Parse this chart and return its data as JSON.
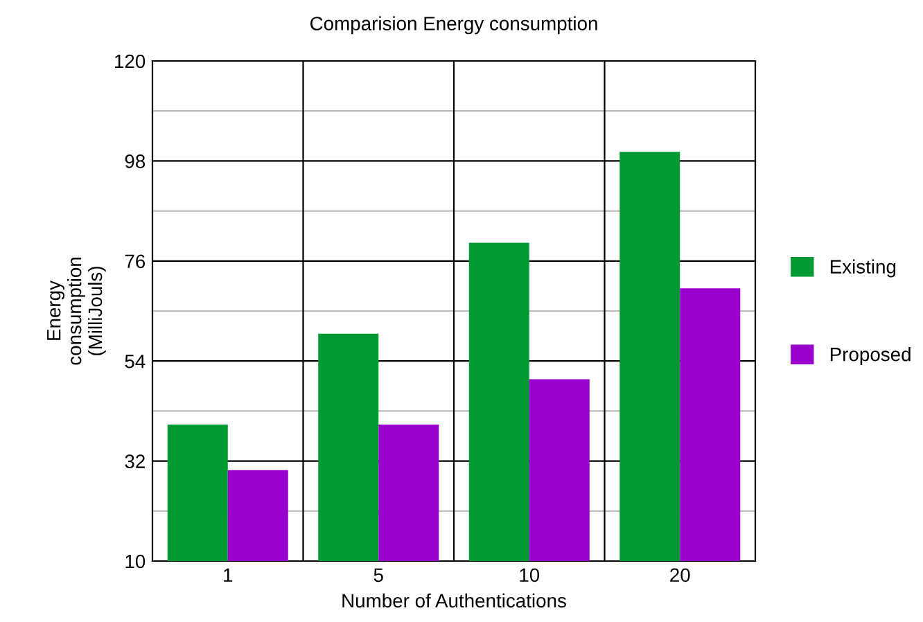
{
  "chart_data": {
    "type": "bar",
    "title": "Comparision Energy consumption",
    "xlabel": "Number of Authentications",
    "ylabel": "Energy\nconsumption\n(MilliJouls)",
    "categories": [
      "1",
      "5",
      "10",
      "20"
    ],
    "series": [
      {
        "name": "Existing",
        "color": "#009933",
        "values": [
          40,
          60,
          80,
          100
        ]
      },
      {
        "name": "Proposed",
        "color": "#9900cc",
        "values": [
          30,
          40,
          50,
          70
        ]
      }
    ],
    "ylim": [
      10,
      120
    ],
    "yticks": [
      10,
      {
        "value": 21,
        "label": null
      },
      32,
      {
        "value": 43,
        "label": null
      },
      54,
      {
        "value": 65,
        "label": null
      },
      76,
      {
        "value": 87,
        "label": null
      },
      98,
      {
        "value": 109,
        "label": null
      },
      120
    ],
    "grid": true,
    "legend": "right"
  }
}
